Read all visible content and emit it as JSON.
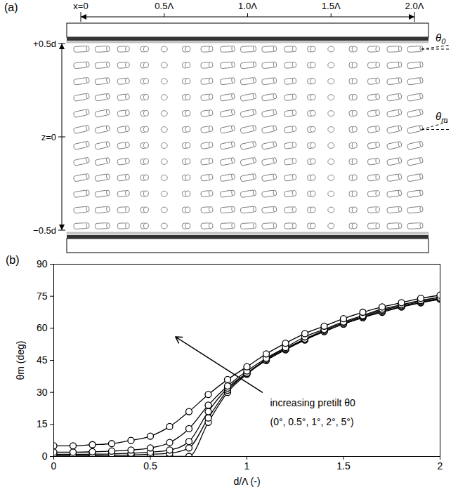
{
  "diagram": {
    "label": "(a)",
    "x_labels": [
      "x=0",
      "0.5Λ",
      "1.0Λ",
      "1.5Λ",
      "2.0Λ"
    ],
    "z_labels": [
      "+0.5d",
      "z=0",
      "−0.5d"
    ],
    "angle_labels": [
      "θ0",
      "θm"
    ]
  },
  "chart_data": {
    "type": "line",
    "label": "(b)",
    "xlabel": "d/Λ (-)",
    "ylabel": "θm (deg)",
    "xlim": [
      0,
      2
    ],
    "xticks": [
      0,
      0.5,
      1,
      1.5,
      2
    ],
    "ylim": [
      0,
      90
    ],
    "yticks": [
      0,
      15,
      30,
      45,
      60,
      75,
      90
    ],
    "annotations": [
      "increasing pretilt θ0",
      "(0°, 0.5°, 1°, 2°, 5°)"
    ],
    "x": [
      0,
      0.1,
      0.2,
      0.3,
      0.4,
      0.5,
      0.6,
      0.7,
      0.8,
      0.9,
      1.0,
      1.1,
      1.2,
      1.3,
      1.4,
      1.5,
      1.6,
      1.7,
      1.8,
      1.9,
      2.0
    ],
    "series": [
      {
        "color": "#000000",
        "marker": "circle",
        "values": [
          0,
          0,
          0,
          0,
          0,
          0,
          0,
          0,
          16,
          30,
          38.5,
          45,
          50,
          54.5,
          58.5,
          62,
          65,
          67.5,
          70,
          72,
          73.5
        ]
      },
      {
        "color": "#000000",
        "marker": "circle",
        "values": [
          0.5,
          0.5,
          0.5,
          0.6,
          0.7,
          1,
          1.5,
          4,
          18,
          31,
          39,
          45,
          50,
          55,
          58.5,
          62,
          65,
          68,
          70,
          72,
          74
        ]
      },
      {
        "color": "#000000",
        "marker": "circle",
        "values": [
          1,
          1,
          1.1,
          1.2,
          1.5,
          2,
          3,
          7,
          21,
          32,
          39,
          45.5,
          50.5,
          55,
          59,
          62.5,
          65.5,
          68.5,
          70.5,
          72.5,
          74
        ]
      },
      {
        "color": "#000000",
        "marker": "circle",
        "values": [
          2,
          2,
          2.2,
          2.5,
          3,
          4,
          6.5,
          13,
          24,
          33,
          40,
          46,
          51,
          56,
          59.5,
          63,
          66,
          69,
          71,
          73,
          74.5
        ]
      },
      {
        "color": "#000000",
        "marker": "circle",
        "values": [
          5,
          5,
          5.5,
          6,
          7.5,
          9.5,
          14,
          21,
          29,
          36,
          42,
          48,
          53,
          57.5,
          61,
          64.5,
          67.5,
          70,
          72,
          74,
          75.5
        ]
      }
    ]
  }
}
